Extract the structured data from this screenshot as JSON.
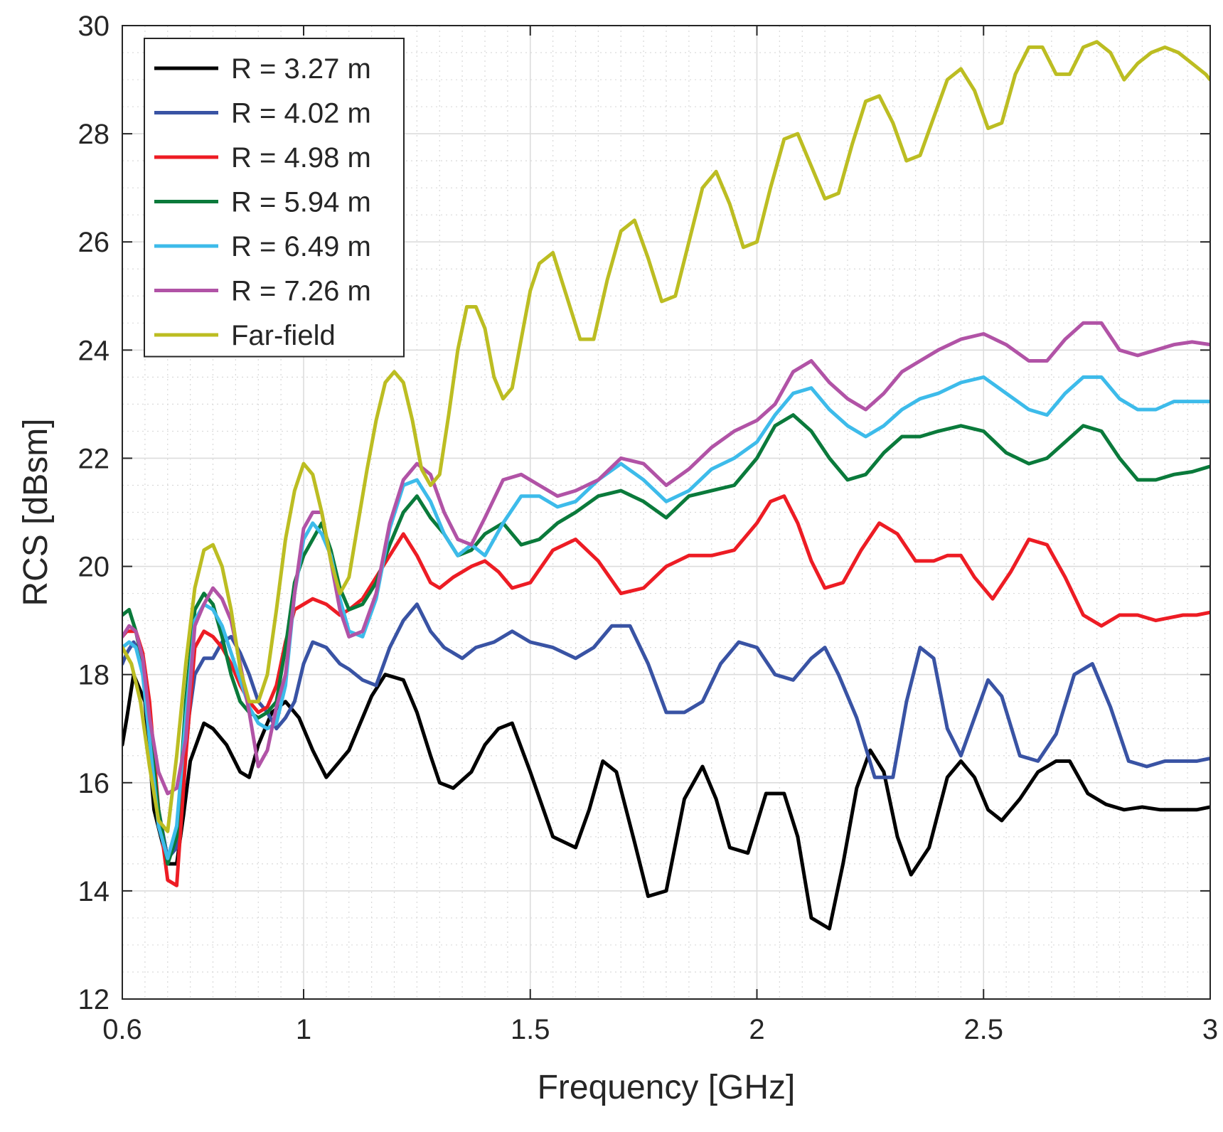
{
  "chart_data": {
    "type": "line",
    "title": "",
    "xlabel": "Frequency [GHz]",
    "ylabel": "RCS [dBsm]",
    "xlim": [
      0.6,
      3
    ],
    "ylim": [
      12,
      30
    ],
    "xticks": [
      0.6,
      1,
      1.5,
      2,
      2.5,
      3
    ],
    "xtick_labels": [
      "0.6",
      "1",
      "1.5",
      "2",
      "2.5",
      "3"
    ],
    "yticks": [
      12,
      14,
      16,
      18,
      20,
      22,
      24,
      26,
      28,
      30
    ],
    "ytick_labels": [
      "12",
      "14",
      "16",
      "18",
      "20",
      "22",
      "24",
      "26",
      "28",
      "30"
    ],
    "grid": true,
    "minor_grid": true,
    "legend_position": "top-left",
    "series": [
      {
        "name": "R = 3.27 m",
        "color": "#000000",
        "x": [
          0.6,
          0.61,
          0.625,
          0.65,
          0.67,
          0.7,
          0.72,
          0.735,
          0.75,
          0.78,
          0.8,
          0.83,
          0.86,
          0.88,
          0.9,
          0.93,
          0.96,
          0.99,
          1.02,
          1.05,
          1.08,
          1.1,
          1.12,
          1.15,
          1.18,
          1.22,
          1.25,
          1.28,
          1.3,
          1.33,
          1.37,
          1.4,
          1.43,
          1.46,
          1.5,
          1.55,
          1.6,
          1.63,
          1.66,
          1.69,
          1.73,
          1.76,
          1.8,
          1.84,
          1.88,
          1.91,
          1.94,
          1.98,
          2.02,
          2.06,
          2.09,
          2.12,
          2.16,
          2.19,
          2.22,
          2.25,
          2.28,
          2.31,
          2.34,
          2.38,
          2.42,
          2.45,
          2.48,
          2.51,
          2.54,
          2.58,
          2.62,
          2.66,
          2.69,
          2.73,
          2.77,
          2.81,
          2.85,
          2.89,
          2.93,
          2.97,
          3.0
        ],
        "y": [
          16.7,
          17.2,
          18.0,
          17.5,
          15.5,
          14.5,
          14.5,
          15.4,
          16.4,
          17.1,
          17.0,
          16.7,
          16.2,
          16.1,
          16.7,
          17.3,
          17.5,
          17.2,
          16.6,
          16.1,
          16.4,
          16.6,
          17.0,
          17.6,
          18.0,
          17.9,
          17.3,
          16.5,
          16.0,
          15.9,
          16.2,
          16.7,
          17.0,
          17.1,
          16.2,
          15.0,
          14.8,
          15.5,
          16.4,
          16.2,
          14.9,
          13.9,
          14.0,
          15.7,
          16.3,
          15.7,
          14.8,
          14.7,
          15.8,
          15.8,
          15.0,
          13.5,
          13.3,
          14.5,
          15.9,
          16.6,
          16.2,
          15.0,
          14.3,
          14.8,
          16.1,
          16.4,
          16.1,
          15.5,
          15.3,
          15.7,
          16.2,
          16.4,
          16.4,
          15.8,
          15.6,
          15.5,
          15.55,
          15.5,
          15.5,
          15.5,
          15.55
        ]
      },
      {
        "name": "R = 4.02 m",
        "color": "#3953a4",
        "x": [
          0.6,
          0.61,
          0.625,
          0.645,
          0.66,
          0.68,
          0.7,
          0.72,
          0.74,
          0.76,
          0.78,
          0.8,
          0.82,
          0.84,
          0.86,
          0.88,
          0.9,
          0.92,
          0.94,
          0.96,
          0.98,
          1.0,
          1.02,
          1.05,
          1.08,
          1.1,
          1.13,
          1.16,
          1.19,
          1.22,
          1.25,
          1.28,
          1.31,
          1.35,
          1.38,
          1.42,
          1.46,
          1.5,
          1.55,
          1.6,
          1.64,
          1.68,
          1.72,
          1.76,
          1.8,
          1.84,
          1.88,
          1.92,
          1.96,
          2.0,
          2.04,
          2.08,
          2.12,
          2.15,
          2.18,
          2.22,
          2.26,
          2.3,
          2.33,
          2.36,
          2.39,
          2.42,
          2.45,
          2.48,
          2.51,
          2.54,
          2.58,
          2.62,
          2.66,
          2.7,
          2.74,
          2.78,
          2.82,
          2.86,
          2.9,
          2.94,
          2.97,
          3.0
        ],
        "y": [
          18.2,
          18.4,
          18.6,
          18.3,
          17.2,
          15.5,
          14.6,
          14.8,
          16.8,
          18.0,
          18.3,
          18.3,
          18.6,
          18.7,
          18.4,
          18.0,
          17.5,
          17.3,
          17.0,
          17.2,
          17.5,
          18.2,
          18.6,
          18.5,
          18.2,
          18.1,
          17.9,
          17.8,
          18.5,
          19.0,
          19.3,
          18.8,
          18.5,
          18.3,
          18.5,
          18.6,
          18.8,
          18.6,
          18.5,
          18.3,
          18.5,
          18.9,
          18.9,
          18.2,
          17.3,
          17.3,
          17.5,
          18.2,
          18.6,
          18.5,
          18.0,
          17.9,
          18.3,
          18.5,
          18.0,
          17.2,
          16.1,
          16.1,
          17.5,
          18.5,
          18.3,
          17.0,
          16.5,
          17.2,
          17.9,
          17.6,
          16.5,
          16.4,
          16.9,
          18.0,
          18.2,
          17.4,
          16.4,
          16.3,
          16.4,
          16.4,
          16.4,
          16.45
        ]
      },
      {
        "name": "R = 4.98 m",
        "color": "#ed1c24",
        "x": [
          0.6,
          0.61,
          0.63,
          0.645,
          0.66,
          0.68,
          0.7,
          0.72,
          0.74,
          0.76,
          0.78,
          0.8,
          0.82,
          0.84,
          0.86,
          0.88,
          0.9,
          0.92,
          0.94,
          0.96,
          0.98,
          1.0,
          1.02,
          1.05,
          1.08,
          1.1,
          1.13,
          1.16,
          1.19,
          1.22,
          1.25,
          1.28,
          1.3,
          1.33,
          1.37,
          1.4,
          1.43,
          1.46,
          1.5,
          1.55,
          1.6,
          1.65,
          1.7,
          1.75,
          1.8,
          1.85,
          1.9,
          1.95,
          2.0,
          2.03,
          2.06,
          2.09,
          2.12,
          2.15,
          2.19,
          2.23,
          2.27,
          2.31,
          2.35,
          2.39,
          2.42,
          2.45,
          2.48,
          2.52,
          2.56,
          2.6,
          2.64,
          2.68,
          2.72,
          2.76,
          2.8,
          2.84,
          2.88,
          2.91,
          2.94,
          2.97,
          3.0
        ],
        "y": [
          18.7,
          18.8,
          18.8,
          18.4,
          17.5,
          15.5,
          14.2,
          14.1,
          16.5,
          18.5,
          18.8,
          18.7,
          18.5,
          18.2,
          17.8,
          17.5,
          17.3,
          17.4,
          17.8,
          18.6,
          19.2,
          19.3,
          19.4,
          19.3,
          19.1,
          19.2,
          19.4,
          19.8,
          20.2,
          20.6,
          20.2,
          19.7,
          19.6,
          19.8,
          20.0,
          20.1,
          19.9,
          19.6,
          19.7,
          20.3,
          20.5,
          20.1,
          19.5,
          19.6,
          20.0,
          20.2,
          20.2,
          20.3,
          20.8,
          21.2,
          21.3,
          20.8,
          20.1,
          19.6,
          19.7,
          20.3,
          20.8,
          20.6,
          20.1,
          20.1,
          20.2,
          20.2,
          19.8,
          19.4,
          19.9,
          20.5,
          20.4,
          19.8,
          19.1,
          18.9,
          19.1,
          19.1,
          19.0,
          19.05,
          19.1,
          19.1,
          19.15
        ]
      },
      {
        "name": "R = 5.94 m",
        "color": "#0a7a3b",
        "x": [
          0.6,
          0.615,
          0.63,
          0.645,
          0.66,
          0.68,
          0.7,
          0.72,
          0.74,
          0.76,
          0.78,
          0.8,
          0.82,
          0.84,
          0.86,
          0.88,
          0.9,
          0.92,
          0.94,
          0.96,
          0.98,
          1.0,
          1.02,
          1.04,
          1.06,
          1.08,
          1.1,
          1.13,
          1.16,
          1.19,
          1.22,
          1.25,
          1.28,
          1.31,
          1.34,
          1.37,
          1.4,
          1.44,
          1.48,
          1.52,
          1.56,
          1.6,
          1.65,
          1.7,
          1.75,
          1.8,
          1.85,
          1.9,
          1.95,
          2.0,
          2.04,
          2.08,
          2.12,
          2.16,
          2.2,
          2.24,
          2.28,
          2.32,
          2.36,
          2.4,
          2.45,
          2.5,
          2.55,
          2.6,
          2.64,
          2.68,
          2.72,
          2.76,
          2.8,
          2.84,
          2.88,
          2.92,
          2.96,
          3.0
        ],
        "y": [
          19.1,
          19.2,
          18.8,
          18.2,
          17.0,
          15.5,
          14.5,
          15.0,
          17.5,
          19.2,
          19.5,
          19.3,
          18.7,
          18.0,
          17.5,
          17.3,
          17.2,
          17.3,
          17.5,
          18.5,
          19.7,
          20.2,
          20.5,
          20.8,
          20.3,
          19.6,
          19.2,
          19.3,
          19.7,
          20.4,
          21.0,
          21.3,
          20.9,
          20.6,
          20.2,
          20.3,
          20.6,
          20.8,
          20.4,
          20.5,
          20.8,
          21.0,
          21.3,
          21.4,
          21.2,
          20.9,
          21.3,
          21.4,
          21.5,
          22.0,
          22.6,
          22.8,
          22.5,
          22.0,
          21.6,
          21.7,
          22.1,
          22.4,
          22.4,
          22.5,
          22.6,
          22.5,
          22.1,
          21.9,
          22.0,
          22.3,
          22.6,
          22.5,
          22.0,
          21.6,
          21.6,
          21.7,
          21.75,
          21.85
        ]
      },
      {
        "name": "R = 6.49 m",
        "color": "#3dbbea",
        "x": [
          0.6,
          0.615,
          0.63,
          0.645,
          0.66,
          0.68,
          0.7,
          0.72,
          0.74,
          0.76,
          0.78,
          0.8,
          0.82,
          0.84,
          0.86,
          0.88,
          0.9,
          0.92,
          0.94,
          0.96,
          0.98,
          1.0,
          1.02,
          1.04,
          1.06,
          1.08,
          1.1,
          1.13,
          1.16,
          1.19,
          1.22,
          1.25,
          1.28,
          1.31,
          1.34,
          1.37,
          1.4,
          1.44,
          1.48,
          1.52,
          1.56,
          1.6,
          1.65,
          1.7,
          1.75,
          1.8,
          1.85,
          1.9,
          1.95,
          2.0,
          2.04,
          2.08,
          2.12,
          2.16,
          2.2,
          2.24,
          2.28,
          2.32,
          2.36,
          2.4,
          2.45,
          2.5,
          2.55,
          2.6,
          2.64,
          2.68,
          2.72,
          2.76,
          2.8,
          2.84,
          2.88,
          2.92,
          2.96,
          3.0
        ],
        "y": [
          18.5,
          18.6,
          18.5,
          18.0,
          16.8,
          15.2,
          14.6,
          15.2,
          17.2,
          19.0,
          19.3,
          19.2,
          18.9,
          18.4,
          17.9,
          17.4,
          17.1,
          17.0,
          17.1,
          17.8,
          19.5,
          20.5,
          20.8,
          20.6,
          20.2,
          19.4,
          18.8,
          18.7,
          19.4,
          20.7,
          21.5,
          21.6,
          21.2,
          20.6,
          20.2,
          20.4,
          20.2,
          20.8,
          21.3,
          21.3,
          21.1,
          21.2,
          21.6,
          21.9,
          21.6,
          21.2,
          21.4,
          21.8,
          22.0,
          22.3,
          22.8,
          23.2,
          23.3,
          22.9,
          22.6,
          22.4,
          22.6,
          22.9,
          23.1,
          23.2,
          23.4,
          23.5,
          23.2,
          22.9,
          22.8,
          23.2,
          23.5,
          23.5,
          23.1,
          22.9,
          22.9,
          23.05,
          23.05,
          23.05
        ]
      },
      {
        "name": "R = 7.26 m",
        "color": "#b153a6",
        "x": [
          0.6,
          0.615,
          0.63,
          0.645,
          0.66,
          0.68,
          0.7,
          0.72,
          0.74,
          0.76,
          0.78,
          0.8,
          0.82,
          0.84,
          0.86,
          0.88,
          0.9,
          0.92,
          0.94,
          0.96,
          0.98,
          1.0,
          1.02,
          1.04,
          1.06,
          1.08,
          1.1,
          1.13,
          1.16,
          1.19,
          1.22,
          1.25,
          1.28,
          1.31,
          1.34,
          1.37,
          1.4,
          1.44,
          1.48,
          1.52,
          1.56,
          1.6,
          1.65,
          1.7,
          1.75,
          1.8,
          1.85,
          1.9,
          1.95,
          2.0,
          2.04,
          2.08,
          2.12,
          2.16,
          2.2,
          2.24,
          2.28,
          2.32,
          2.36,
          2.4,
          2.45,
          2.5,
          2.55,
          2.6,
          2.64,
          2.68,
          2.72,
          2.76,
          2.8,
          2.84,
          2.88,
          2.92,
          2.96,
          3.0
        ],
        "y": [
          18.7,
          18.9,
          18.8,
          18.3,
          17.2,
          16.2,
          15.8,
          15.9,
          16.8,
          18.9,
          19.3,
          19.6,
          19.4,
          19.0,
          18.2,
          17.3,
          16.3,
          16.6,
          17.4,
          18.0,
          19.5,
          20.7,
          21.0,
          21.0,
          20.1,
          19.2,
          18.7,
          18.8,
          19.5,
          20.8,
          21.6,
          21.9,
          21.7,
          21.0,
          20.5,
          20.4,
          20.9,
          21.6,
          21.7,
          21.5,
          21.3,
          21.4,
          21.6,
          22.0,
          21.9,
          21.5,
          21.8,
          22.2,
          22.5,
          22.7,
          23.0,
          23.6,
          23.8,
          23.4,
          23.1,
          22.9,
          23.2,
          23.6,
          23.8,
          24.0,
          24.2,
          24.3,
          24.1,
          23.8,
          23.8,
          24.2,
          24.5,
          24.5,
          24.0,
          23.9,
          24.0,
          24.1,
          24.15,
          24.1
        ]
      },
      {
        "name": "Far-field",
        "color": "#bcbd22",
        "x": [
          0.6,
          0.62,
          0.64,
          0.66,
          0.68,
          0.7,
          0.72,
          0.74,
          0.76,
          0.78,
          0.8,
          0.82,
          0.84,
          0.86,
          0.88,
          0.9,
          0.92,
          0.94,
          0.96,
          0.98,
          1.0,
          1.02,
          1.04,
          1.06,
          1.08,
          1.1,
          1.12,
          1.14,
          1.16,
          1.18,
          1.2,
          1.22,
          1.24,
          1.26,
          1.28,
          1.3,
          1.32,
          1.34,
          1.36,
          1.38,
          1.4,
          1.42,
          1.44,
          1.46,
          1.48,
          1.5,
          1.52,
          1.55,
          1.58,
          1.61,
          1.64,
          1.67,
          1.7,
          1.73,
          1.76,
          1.79,
          1.82,
          1.85,
          1.88,
          1.91,
          1.94,
          1.97,
          2.0,
          2.03,
          2.06,
          2.09,
          2.12,
          2.15,
          2.18,
          2.21,
          2.24,
          2.27,
          2.3,
          2.33,
          2.36,
          2.39,
          2.42,
          2.45,
          2.48,
          2.51,
          2.54,
          2.57,
          2.6,
          2.63,
          2.66,
          2.69,
          2.72,
          2.75,
          2.78,
          2.81,
          2.84,
          2.87,
          2.9,
          2.93,
          2.96,
          2.99,
          3.0
        ],
        "y": [
          18.5,
          18.2,
          17.5,
          16.3,
          15.3,
          15.1,
          16.5,
          18.2,
          19.6,
          20.3,
          20.4,
          20.0,
          19.2,
          18.1,
          17.5,
          17.5,
          18.0,
          19.2,
          20.5,
          21.4,
          21.9,
          21.7,
          21.0,
          20.1,
          19.5,
          19.8,
          20.8,
          21.8,
          22.7,
          23.4,
          23.6,
          23.4,
          22.7,
          21.8,
          21.5,
          21.7,
          22.8,
          24.0,
          24.8,
          24.8,
          24.4,
          23.5,
          23.1,
          23.3,
          24.2,
          25.1,
          25.6,
          25.8,
          25.0,
          24.2,
          24.2,
          25.3,
          26.2,
          26.4,
          25.7,
          24.9,
          25.0,
          26.0,
          27.0,
          27.3,
          26.7,
          25.9,
          26.0,
          27.0,
          27.9,
          28.0,
          27.4,
          26.8,
          26.9,
          27.8,
          28.6,
          28.7,
          28.2,
          27.5,
          27.6,
          28.3,
          29.0,
          29.2,
          28.8,
          28.1,
          28.2,
          29.1,
          29.6,
          29.6,
          29.1,
          29.1,
          29.6,
          29.7,
          29.5,
          29.0,
          29.3,
          29.5,
          29.6,
          29.5,
          29.3,
          29.1,
          29.0
        ]
      }
    ]
  }
}
